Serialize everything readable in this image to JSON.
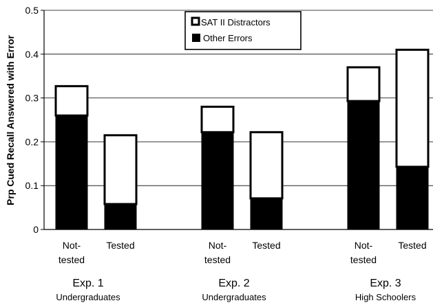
{
  "chart_data": {
    "type": "bar",
    "stacked": true,
    "ylabel": "Prp Cued Recall Answered with Error",
    "ylim": [
      0,
      0.5
    ],
    "yticks": [
      "0",
      "0.1",
      "0.2",
      "0.3",
      "0.4",
      "0.5"
    ],
    "ytick_values": [
      0,
      0.1,
      0.2,
      0.3,
      0.4,
      0.5
    ],
    "grid": true,
    "legend_position": "top-center",
    "legend": [
      {
        "label": "SAT II Distractors",
        "color": "#ffffff"
      },
      {
        "label": "Other Errors",
        "color": "#000000"
      }
    ],
    "groups": [
      {
        "line1": "Exp. 1",
        "line2": "Undergraduates",
        "bars": [
          {
            "label_lines": [
              "Not-",
              "tested"
            ],
            "other": 0.26,
            "sat": 0.067
          },
          {
            "label_lines": [
              "Tested"
            ],
            "other": 0.058,
            "sat": 0.157
          }
        ]
      },
      {
        "line1": "Exp. 2",
        "line2": "Undergraduates",
        "bars": [
          {
            "label_lines": [
              "Not-",
              "tested"
            ],
            "other": 0.222,
            "sat": 0.058
          },
          {
            "label_lines": [
              "Tested"
            ],
            "other": 0.071,
            "sat": 0.151
          }
        ]
      },
      {
        "line1": "Exp. 3",
        "line2": "High Schoolers",
        "bars": [
          {
            "label_lines": [
              "Not-",
              "tested"
            ],
            "other": 0.293,
            "sat": 0.077
          },
          {
            "label_lines": [
              "Tested"
            ],
            "other": 0.143,
            "sat": 0.267
          }
        ]
      }
    ]
  }
}
